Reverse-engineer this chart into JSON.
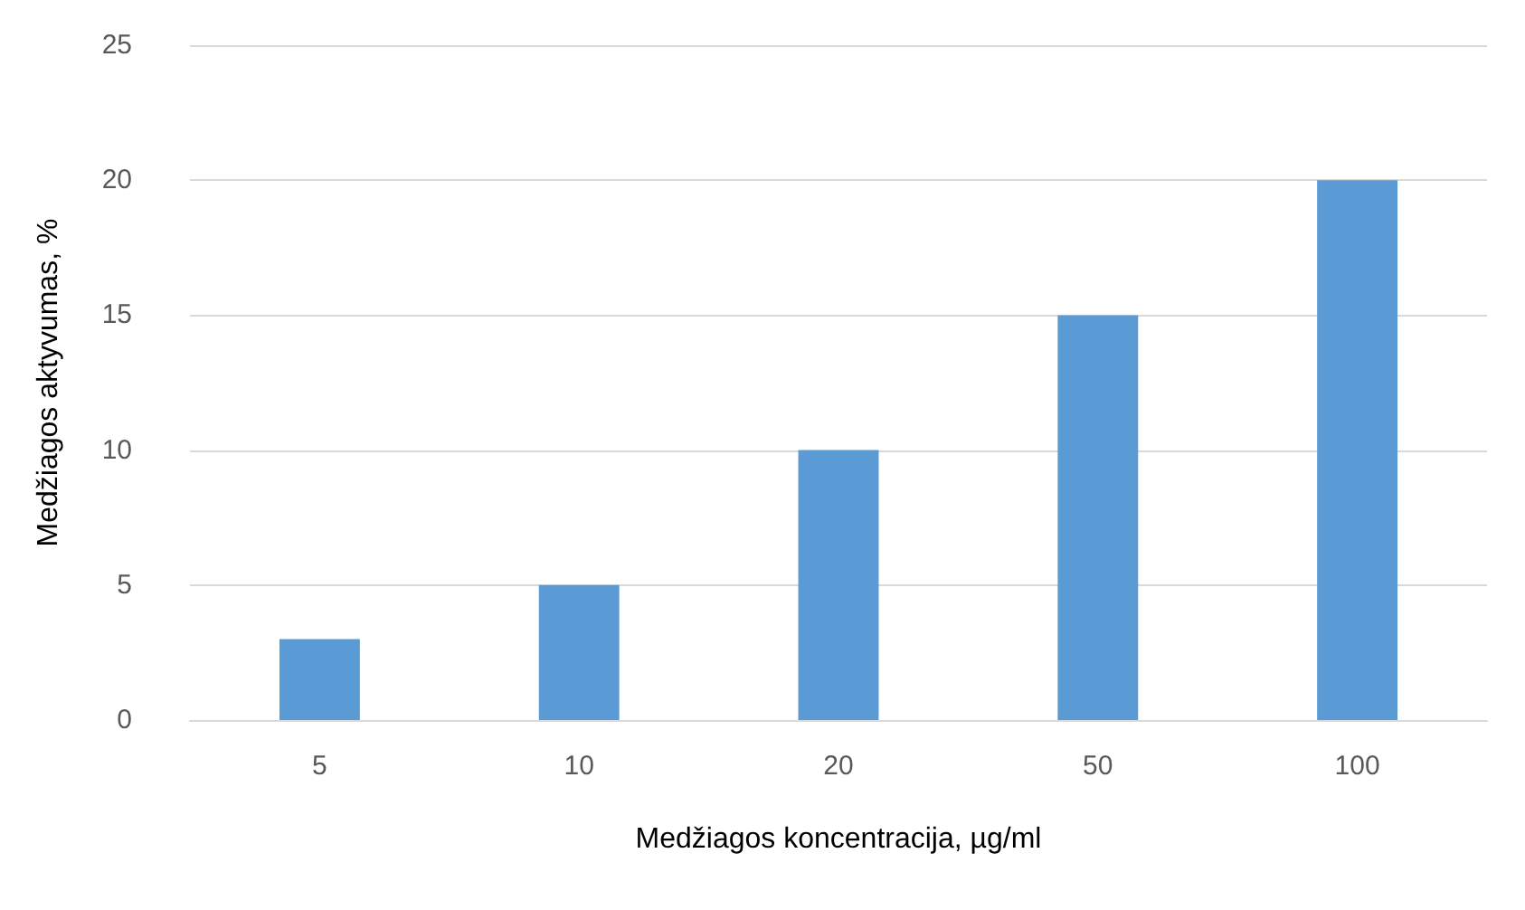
{
  "chart_data": {
    "type": "bar",
    "xlabel": "Medžiagos koncentracija, µg/ml",
    "ylabel": "Medžiagos aktyvumas, %",
    "categories": [
      "5",
      "10",
      "20",
      "50",
      "100"
    ],
    "values": [
      3,
      5,
      10,
      15,
      20
    ],
    "color": "#5b9bd5",
    "ylim": [
      0,
      25
    ],
    "yticks": [
      0,
      5,
      10,
      15,
      20,
      25
    ],
    "grid": "y"
  }
}
